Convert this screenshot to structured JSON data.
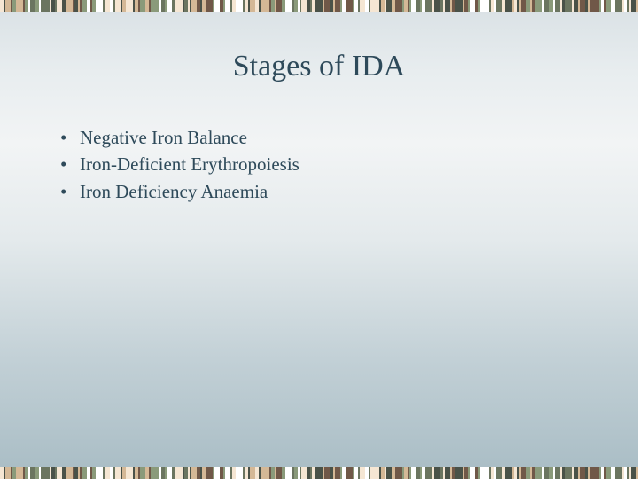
{
  "slide": {
    "title": "Stages of IDA",
    "bullets": [
      "Negative Iron Balance",
      "Iron-Deficient Erythropoiesis",
      "Iron Deficiency Anaemia"
    ]
  },
  "style": {
    "title_fontsize": 34,
    "title_color": "#2e4a5a",
    "bullet_fontsize": 21,
    "bullet_color": "#2e4a5a",
    "background_gradient": [
      "#d8e0e4",
      "#e8edef",
      "#f2f4f5",
      "#e4eaec",
      "#c2d0d6",
      "#a8bcc4"
    ],
    "barcode_colors": [
      "#f5e6d3",
      "#d4b896",
      "#8a9a7a",
      "#6b7560",
      "#4a5248",
      "#705848",
      "#ffffff"
    ]
  }
}
